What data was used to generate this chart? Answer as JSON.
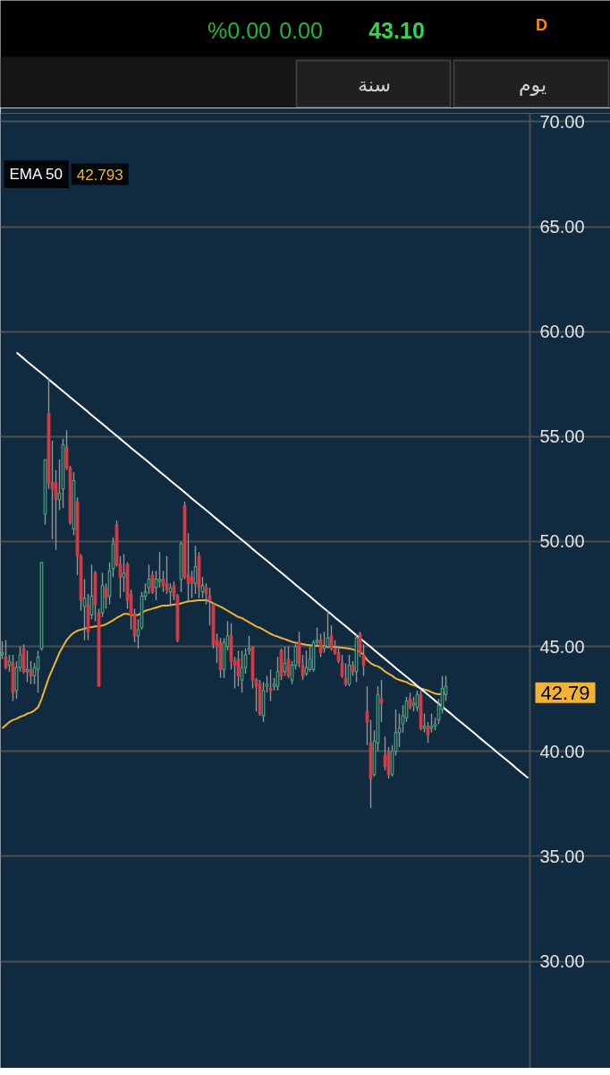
{
  "chart_data": {
    "type": "candlestick",
    "categories": [
      null,
      null,
      null,
      null,
      null,
      null,
      null,
      null,
      null,
      null,
      null,
      null,
      null,
      null,
      null,
      null,
      null,
      null,
      null,
      null,
      null,
      null,
      null,
      null,
      null,
      null,
      null,
      null,
      null,
      null,
      null,
      null,
      null,
      null,
      null,
      null,
      null,
      null,
      null,
      null,
      null,
      null,
      null,
      null,
      null,
      null,
      null,
      null,
      null,
      null,
      null,
      null,
      null,
      null,
      null,
      null,
      null,
      null,
      null,
      null,
      null,
      null,
      null,
      null,
      null,
      null,
      null,
      null,
      null,
      null,
      null,
      null,
      null,
      null,
      null,
      null,
      null,
      null,
      null,
      null,
      null,
      null,
      null,
      null,
      null,
      null,
      null,
      null,
      null,
      null,
      null,
      null,
      null,
      null,
      null,
      null,
      null,
      null,
      null,
      null,
      null,
      null,
      null,
      null,
      null,
      null,
      null,
      null,
      null,
      null,
      null,
      null,
      null,
      null,
      null,
      null,
      null,
      null,
      null,
      null,
      null,
      null,
      null,
      null,
      null,
      null,
      null,
      null,
      null,
      null,
      null,
      null,
      null,
      null,
      null,
      null,
      null,
      null,
      null,
      null,
      null,
      null,
      null,
      null,
      null,
      null,
      null,
      null
    ],
    "ohlc": [
      [
        44.6,
        45.25,
        44.4,
        44.7
      ],
      [
        44.5,
        45.3,
        43.9,
        44.0
      ],
      [
        44.1,
        44.6,
        43.8,
        44.3
      ],
      [
        44.2,
        44.6,
        42.4,
        42.8
      ],
      [
        42.9,
        44.3,
        42.5,
        44.0
      ],
      [
        44.0,
        45.0,
        43.8,
        44.6
      ],
      [
        44.9,
        45.1,
        43.7,
        43.8
      ],
      [
        43.8,
        44.8,
        43.3,
        43.9
      ],
      [
        43.9,
        44.3,
        43.2,
        43.6
      ],
      [
        43.6,
        44.2,
        43.2,
        44.0
      ],
      [
        43.9,
        44.8,
        42.8,
        44.5
      ],
      [
        44.9,
        49.0,
        44.8,
        49.0
      ],
      [
        51.3,
        53.9,
        50.8,
        53.9
      ],
      [
        56.1,
        57.8,
        52.5,
        52.8
      ],
      [
        52.8,
        54.8,
        50.1,
        52.5
      ],
      [
        52.8,
        53.4,
        49.6,
        52.0
      ],
      [
        52.0,
        53.9,
        51.5,
        52.3
      ],
      [
        52.5,
        54.9,
        51.6,
        54.6
      ],
      [
        54.5,
        55.3,
        53.4,
        53.5
      ],
      [
        53.5,
        53.6,
        50.8,
        50.9
      ],
      [
        50.6,
        53.3,
        50.3,
        52.9
      ],
      [
        51.9,
        52.1,
        48.4,
        49.3
      ],
      [
        49.3,
        49.4,
        46.7,
        47.2
      ],
      [
        46.9,
        48.2,
        45.3,
        47.3
      ],
      [
        47.0,
        47.5,
        45.3,
        45.7
      ],
      [
        46.5,
        48.9,
        46.3,
        47.4
      ],
      [
        48.5,
        48.6,
        46.2,
        47.0
      ],
      [
        46.6,
        46.8,
        43.1,
        43.1
      ],
      [
        46.6,
        48.5,
        46.4,
        47.9
      ],
      [
        47.8,
        48.0,
        46.8,
        47.3
      ],
      [
        47.4,
        49.0,
        47.0,
        48.6
      ],
      [
        48.7,
        50.2,
        48.3,
        49.9
      ],
      [
        50.8,
        51.0,
        48.8,
        48.9
      ],
      [
        48.9,
        49.3,
        47.3,
        48.3
      ],
      [
        48.3,
        49.4,
        47.6,
        48.5
      ],
      [
        48.9,
        49.0,
        46.8,
        47.2
      ],
      [
        47.5,
        47.7,
        45.8,
        46.5
      ],
      [
        46.5,
        46.8,
        45.2,
        45.5
      ],
      [
        45.5,
        46.3,
        44.9,
        45.8
      ],
      [
        45.9,
        47.6,
        45.8,
        47.4
      ],
      [
        47.4,
        48.0,
        47.2,
        47.6
      ],
      [
        47.8,
        48.9,
        47.5,
        48.2
      ],
      [
        48.4,
        48.6,
        47.5,
        47.6
      ],
      [
        47.8,
        48.6,
        47.2,
        48.2
      ],
      [
        48.1,
        49.5,
        47.8,
        48.2
      ],
      [
        48.2,
        48.6,
        47.6,
        47.9
      ],
      [
        48.0,
        49.3,
        47.5,
        47.7
      ],
      [
        47.6,
        48.0,
        46.9,
        47.8
      ],
      [
        47.9,
        48.1,
        47.2,
        47.4
      ],
      [
        47.4,
        47.5,
        45.2,
        45.3
      ],
      [
        48.2,
        50.0,
        47.6,
        49.9
      ],
      [
        51.7,
        51.9,
        48.2,
        48.3
      ],
      [
        48.4,
        50.4,
        47.2,
        48.0
      ],
      [
        48.3,
        48.6,
        47.3,
        48.0
      ],
      [
        48.0,
        49.8,
        47.5,
        48.8
      ],
      [
        49.3,
        49.5,
        47.3,
        47.8
      ],
      [
        47.6,
        48.3,
        47.3,
        47.9
      ],
      [
        47.8,
        48.0,
        47.0,
        47.5
      ],
      [
        47.4,
        47.8,
        46.0,
        47.2
      ],
      [
        47.0,
        47.1,
        44.9,
        45.1
      ],
      [
        45.3,
        45.6,
        44.2,
        45.0
      ],
      [
        45.2,
        45.4,
        43.5,
        43.9
      ],
      [
        43.9,
        45.4,
        43.5,
        45.2
      ],
      [
        45.0,
        46.2,
        44.8,
        45.5
      ],
      [
        45.5,
        46.1,
        43.9,
        44.3
      ],
      [
        44.3,
        44.5,
        43.0,
        44.1
      ],
      [
        44.4,
        44.8,
        43.1,
        43.6
      ],
      [
        43.4,
        44.8,
        42.8,
        44.0
      ],
      [
        44.0,
        44.9,
        43.7,
        44.6
      ],
      [
        44.8,
        45.5,
        44.6,
        44.9
      ],
      [
        45.0,
        45.0,
        43.0,
        43.4
      ],
      [
        43.4,
        43.5,
        41.9,
        43.1
      ],
      [
        43.2,
        43.4,
        41.7,
        41.8
      ],
      [
        41.7,
        43.3,
        41.4,
        42.9
      ],
      [
        43.1,
        43.6,
        42.8,
        43.2
      ],
      [
        43.0,
        43.9,
        42.4,
        42.9
      ],
      [
        43.1,
        43.5,
        42.9,
        43.2
      ],
      [
        43.1,
        44.5,
        42.9,
        43.8
      ],
      [
        44.8,
        44.9,
        43.4,
        43.6
      ],
      [
        43.8,
        45.0,
        43.6,
        44.2
      ],
      [
        44.4,
        45.0,
        43.5,
        43.6
      ],
      [
        43.4,
        44.3,
        43.2,
        44.1
      ],
      [
        44.1,
        45.1,
        43.9,
        45.0
      ],
      [
        45.2,
        45.7,
        44.0,
        44.2
      ],
      [
        44.1,
        44.6,
        43.4,
        43.6
      ],
      [
        43.7,
        44.8,
        43.6,
        44.0
      ],
      [
        43.9,
        45.0,
        43.8,
        44.4
      ],
      [
        43.9,
        45.3,
        43.8,
        45.2
      ],
      [
        45.2,
        45.9,
        45.0,
        45.3
      ],
      [
        45.3,
        45.6,
        44.5,
        44.7
      ],
      [
        44.9,
        45.7,
        44.7,
        45.0
      ],
      [
        45.0,
        46.7,
        44.9,
        45.4
      ],
      [
        45.5,
        46.0,
        44.8,
        44.9
      ],
      [
        44.9,
        45.3,
        44.6,
        44.7
      ],
      [
        44.7,
        45.0,
        44.2,
        44.3
      ],
      [
        44.2,
        44.6,
        43.5,
        43.6
      ],
      [
        43.5,
        44.2,
        43.1,
        43.2
      ],
      [
        43.2,
        44.6,
        43.1,
        44.1
      ],
      [
        44.1,
        44.3,
        43.6,
        43.8
      ],
      [
        43.8,
        45.6,
        43.3,
        45.4
      ],
      [
        45.6,
        45.7,
        44.5,
        44.7
      ],
      [
        44.6,
        45.1,
        43.6,
        44.1
      ],
      [
        41.9,
        43.1,
        40.3,
        41.4
      ],
      [
        40.4,
        41.5,
        37.3,
        38.7
      ],
      [
        38.9,
        41.0,
        38.8,
        40.5
      ],
      [
        40.4,
        43.1,
        40.0,
        42.7
      ],
      [
        42.5,
        43.4,
        41.4,
        42.3
      ],
      [
        39.8,
        40.7,
        39.1,
        39.3
      ],
      [
        40.0,
        40.2,
        38.7,
        38.9
      ],
      [
        38.9,
        40.3,
        38.8,
        40.0
      ],
      [
        40.0,
        42.0,
        39.8,
        40.9
      ],
      [
        40.9,
        41.8,
        40.2,
        41.1
      ],
      [
        41.3,
        42.2,
        40.9,
        41.7
      ],
      [
        41.6,
        42.6,
        41.4,
        42.4
      ],
      [
        42.5,
        42.8,
        42.0,
        42.1
      ],
      [
        42.2,
        42.6,
        41.9,
        42.3
      ],
      [
        42.1,
        42.9,
        41.9,
        42.7
      ],
      [
        42.7,
        42.9,
        41.0,
        41.1
      ],
      [
        41.1,
        41.8,
        40.9,
        41.2
      ],
      [
        41.2,
        41.4,
        40.4,
        40.8
      ],
      [
        41.1,
        41.8,
        40.9,
        41.2
      ],
      [
        41.2,
        41.6,
        41.0,
        41.3
      ],
      [
        41.5,
        42.5,
        41.3,
        42.2
      ],
      [
        42.0,
        43.6,
        41.8,
        43.0
      ],
      [
        42.7,
        43.6,
        42.4,
        43.1
      ],
      null,
      null,
      null,
      null,
      null,
      null,
      null,
      null,
      null,
      null,
      null,
      null,
      null,
      null,
      null,
      null,
      null,
      null,
      null,
      null,
      null,
      null,
      null
    ],
    "colors": [
      "#2fb36b",
      "#e2373f",
      "#2fb36b",
      "#e2373f",
      "#2fb36b",
      "#2fb36b",
      "#e2373f",
      "#2fb36b",
      "#e2373f",
      "#2fb36b",
      "#2fb36b",
      "#2fb36b",
      "#2fb36b",
      "#e2373f",
      "#e2373f",
      "#e2373f",
      "#2fb36b",
      "#2fb36b",
      "#e2373f",
      "#e2373f",
      "#2fb36b",
      "#e2373f",
      "#e2373f",
      "#2fb36b",
      "#e2373f",
      "#2fb36b",
      "#e2373f",
      "#e2373f",
      "#2fb36b",
      "#e2373f",
      "#2fb36b",
      "#2fb36b",
      "#e2373f",
      "#e2373f",
      "#2fb36b",
      "#e2373f",
      "#e2373f",
      "#e2373f",
      "#2fb36b",
      "#2fb36b",
      "#2fb36b",
      "#2fb36b",
      "#e2373f",
      "#2fb36b",
      "#2fb36b",
      "#e2373f",
      "#e2373f",
      "#2fb36b",
      "#e2373f",
      "#e2373f",
      "#2fb36b",
      "#e2373f",
      "#e2373f",
      "#e2373f",
      "#2fb36b",
      "#e2373f",
      "#2fb36b",
      "#e2373f",
      "#e2373f",
      "#e2373f",
      "#e2373f",
      "#e2373f",
      "#2fb36b",
      "#2fb36b",
      "#e2373f",
      "#e2373f",
      "#e2373f",
      "#2fb36b",
      "#2fb36b",
      "#2fb36b",
      "#e2373f",
      "#e2373f",
      "#e2373f",
      "#2fb36b",
      "#2fb36b",
      "#e2373f",
      "#2fb36b",
      "#2fb36b",
      "#e2373f",
      "#2fb36b",
      "#e2373f",
      "#2fb36b",
      "#2fb36b",
      "#e2373f",
      "#e2373f",
      "#2fb36b",
      "#2fb36b",
      "#2fb36b",
      "#2fb36b",
      "#e2373f",
      "#2fb36b",
      "#2fb36b",
      "#e2373f",
      "#e2373f",
      "#e2373f",
      "#e2373f",
      "#e2373f",
      "#2fb36b",
      "#e2373f",
      "#2fb36b",
      "#e2373f",
      "#e2373f",
      "#e2373f",
      "#e2373f",
      "#2fb36b",
      "#2fb36b",
      "#e2373f",
      "#e2373f",
      "#e2373f",
      "#2fb36b",
      "#2fb36b",
      "#2fb36b",
      "#2fb36b",
      "#2fb36b",
      "#e2373f",
      "#2fb36b",
      "#2fb36b",
      "#e2373f",
      "#2fb36b",
      "#e2373f",
      "#2fb36b",
      "#2fb36b",
      "#2fb36b",
      "#2fb36b",
      "#2fb36b",
      null,
      null,
      null,
      null,
      null,
      null,
      null,
      null,
      null,
      null,
      null,
      null,
      null,
      null,
      null,
      null,
      null,
      null,
      null,
      null,
      null,
      null,
      null
    ],
    "series": [
      {
        "name": "EMA 50",
        "type": "line",
        "color": "#f2b233",
        "values": [
          41.1,
          41.25,
          41.4,
          41.5,
          41.55,
          41.65,
          41.7,
          41.8,
          41.85,
          41.95,
          42.1,
          42.5,
          43.0,
          43.5,
          43.9,
          44.3,
          44.7,
          45.0,
          45.3,
          45.5,
          45.65,
          45.75,
          45.8,
          45.85,
          45.9,
          45.92,
          45.95,
          45.97,
          46.0,
          46.05,
          46.15,
          46.25,
          46.36,
          46.45,
          46.55,
          46.55,
          46.5,
          46.5,
          46.5,
          46.6,
          46.7,
          46.75,
          46.8,
          46.85,
          46.9,
          46.95,
          46.95,
          46.97,
          47.0,
          47.0,
          47.05,
          47.1,
          47.15,
          47.16,
          47.18,
          47.2,
          47.2,
          47.2,
          47.15,
          47.05,
          46.97,
          46.9,
          46.8,
          46.7,
          46.6,
          46.5,
          46.4,
          46.35,
          46.25,
          46.15,
          46.05,
          45.95,
          45.89,
          45.8,
          45.7,
          45.6,
          45.52,
          45.47,
          45.4,
          45.35,
          45.28,
          45.22,
          45.17,
          45.14,
          45.11,
          45.08,
          45.06,
          45.04,
          45.03,
          45.02,
          45.0,
          44.99,
          44.98,
          44.97,
          44.96,
          44.94,
          44.92,
          44.9,
          44.86,
          44.8,
          44.75,
          44.6,
          44.35,
          44.2,
          44.1,
          44.05,
          43.95,
          43.8,
          43.7,
          43.6,
          43.47,
          43.4,
          43.35,
          43.3,
          43.2,
          43.15,
          43.08,
          43.0,
          42.95,
          42.9,
          42.82,
          42.75,
          42.72,
          42.75,
          42.79,
          null,
          null,
          null,
          null,
          null,
          null,
          null,
          null,
          null,
          null,
          null,
          null,
          null,
          null,
          null,
          null,
          null,
          null,
          null,
          null,
          null,
          null,
          null
        ]
      },
      {
        "type": "line",
        "color": "#ffffff",
        "values": [
          null,
          null,
          null,
          null,
          59.0,
          58.86,
          58.72,
          58.57,
          58.43,
          58.29,
          58.15,
          58.01,
          57.87,
          57.72,
          57.58,
          57.44,
          57.3,
          57.16,
          57.02,
          56.87,
          56.73,
          56.59,
          56.45,
          56.31,
          56.17,
          56.02,
          55.88,
          55.74,
          55.6,
          55.46,
          55.31,
          55.17,
          55.03,
          54.89,
          54.75,
          54.61,
          54.46,
          54.32,
          54.18,
          54.04,
          53.9,
          53.76,
          53.61,
          53.47,
          53.33,
          53.19,
          53.05,
          52.9,
          52.76,
          52.62,
          52.48,
          52.34,
          52.2,
          52.05,
          51.91,
          51.77,
          51.63,
          51.49,
          51.35,
          51.2,
          51.06,
          50.92,
          50.78,
          50.64,
          50.5,
          50.35,
          50.21,
          50.07,
          49.93,
          49.79,
          49.64,
          49.5,
          49.36,
          49.22,
          49.08,
          48.94,
          48.79,
          48.65,
          48.51,
          48.37,
          48.23,
          48.09,
          47.94,
          47.8,
          47.66,
          47.52,
          47.38,
          47.23,
          47.09,
          46.95,
          46.81,
          46.67,
          46.53,
          46.38,
          46.24,
          46.1,
          45.96,
          45.82,
          45.68,
          45.53,
          45.39,
          45.25,
          45.11,
          44.97,
          44.82,
          44.68,
          44.54,
          44.4,
          44.26,
          44.12,
          43.97,
          43.83,
          43.69,
          43.55,
          43.41,
          43.27,
          43.12,
          42.98,
          42.84,
          42.7,
          42.56,
          42.41,
          42.27,
          42.13,
          41.99,
          41.85,
          41.71,
          41.56,
          41.42,
          41.28,
          41.14,
          41.0,
          40.86,
          40.71,
          40.57,
          40.43,
          40.29,
          40.15,
          40.0,
          39.86,
          39.72,
          39.58,
          39.44,
          39.3,
          39.15,
          39.01,
          38.87,
          38.73
        ]
      }
    ],
    "ylim": [
      24.9,
      70.4
    ],
    "yticks": [
      {
        "value": 30,
        "label": "30.00"
      },
      {
        "value": 35,
        "label": "35.00"
      },
      {
        "value": 40,
        "label": "40.00"
      },
      {
        "value": 45,
        "label": "45.00"
      },
      {
        "value": 50,
        "label": "50.00"
      },
      {
        "value": 55,
        "label": "55.00"
      },
      {
        "value": 60,
        "label": "60.00"
      },
      {
        "value": 65,
        "label": "65.00"
      },
      {
        "value": 70,
        "label": "70.00"
      }
    ],
    "tick_labels": "y",
    "grid": "y",
    "legend": "top left",
    "annotations": [
      "%0.00",
      "0.00",
      "43.10",
      "D",
      "سنة",
      "يوم",
      "42.793",
      "42.79"
    ]
  }
}
